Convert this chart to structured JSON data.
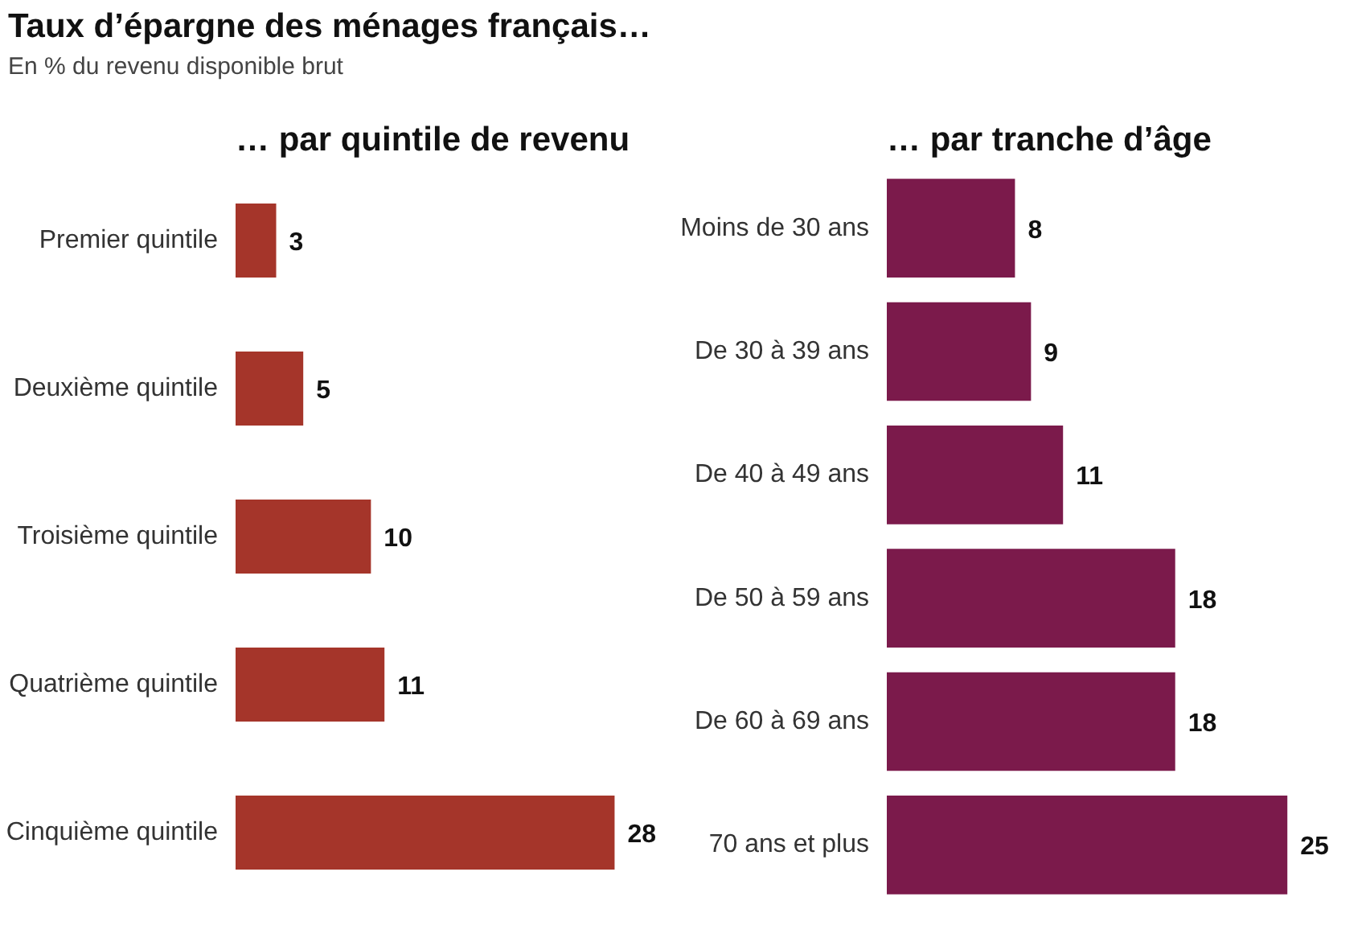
{
  "chart_data": [
    {
      "type": "other",
      "title": "Taux d’épargne des ménages français…",
      "subtitle": "En % du revenu disponible brut"
    },
    {
      "type": "bar",
      "orientation": "horizontal",
      "title": "… par quintile de revenu",
      "categories": [
        "Premier quintile",
        "Deuxième quintile",
        "Troisième quintile",
        "Quatrième quintile",
        "Cinquième quintile"
      ],
      "values": [
        3,
        5,
        10,
        11,
        28
      ],
      "color": "#a5352a",
      "data_labels": true
    },
    {
      "type": "bar",
      "orientation": "horizontal",
      "title": "… par tranche d’âge",
      "categories": [
        "Moins de 30 ans",
        "De 30 à 39 ans",
        "De 40 à 49 ans",
        "De 50 à 59 ans",
        "De 60 à 69 ans",
        "70 ans et plus"
      ],
      "values": [
        8,
        9,
        11,
        18,
        18,
        25
      ],
      "color": "#7b1a4b",
      "data_labels": true
    }
  ]
}
